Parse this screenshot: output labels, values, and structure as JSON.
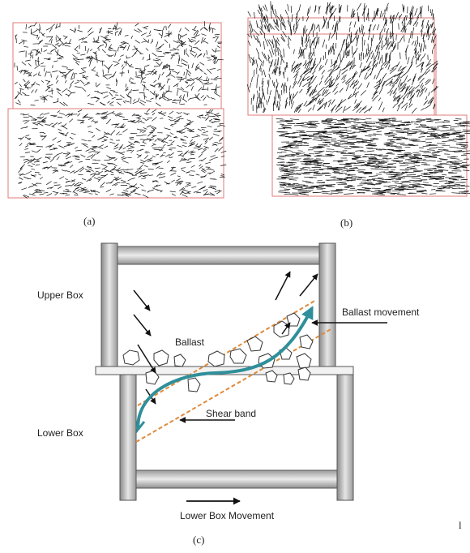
{
  "panels": {
    "a_caption": "(a)",
    "b_caption": "(b)",
    "c_caption": "(c)"
  },
  "labels": {
    "upper_box": "Upper Box",
    "lower_box": "Lower Box",
    "ballast": "Ballast",
    "ballast_movement": "Ballast movement",
    "shear_band": "Shear band",
    "lower_box_movement": "Lower Box Movement",
    "page_mark": "l"
  },
  "colors": {
    "vector_ink": "#111111",
    "frame_outline": "#e07a7a",
    "flow_arrow": "#2f8f9a",
    "shear_band_line": "#e08a3a",
    "box_wall": "#bdbdbd"
  }
}
